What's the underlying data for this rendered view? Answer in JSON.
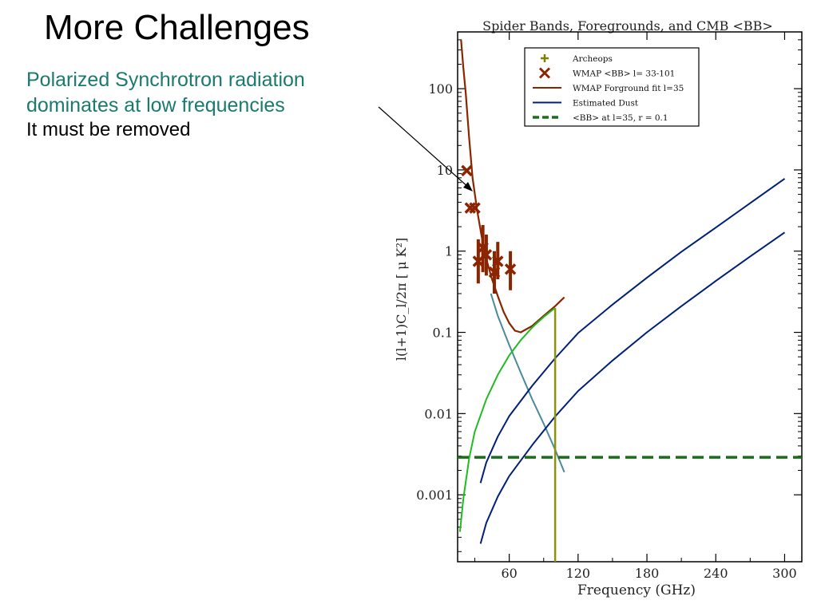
{
  "slide": {
    "title": "More Challenges",
    "bullet_line1": "Polarized Synchrotron radiation",
    "bullet_line2": "dominates at low frequencies",
    "note": "It must be removed"
  },
  "colors": {
    "wmap": "#8b2500",
    "foreground_fit": "#8b2500",
    "synchrotron": "#4a8a9a",
    "dust": "#001f7a",
    "cmb": "#1a6e1a",
    "green_curve": "#22bb22",
    "vertical": "#8f8f10",
    "archeops": "#808000"
  },
  "chart_data": {
    "type": "line",
    "title": "Spider Bands, Foregrounds, and CMB <BB>",
    "xlabel": "Frequency (GHz)",
    "ylabel": "l(l+1)C_l/2π [ μ K²]",
    "yscale": "log",
    "xlim": [
      15,
      315
    ],
    "ylim": [
      0.00015,
      500
    ],
    "xticks": [
      60,
      120,
      180,
      240,
      300
    ],
    "xtick_labels": [
      "60",
      "120",
      "180",
      "240",
      "300"
    ],
    "yticks": [
      100,
      10,
      1,
      0.1,
      0.01,
      0.001
    ],
    "ytick_labels": [
      "100",
      "10",
      "1",
      "0.1",
      "0.01",
      "0.001"
    ],
    "legend_position": "top-right",
    "legend": [
      {
        "label": "Archeops",
        "marker": "plus",
        "color": "#808000"
      },
      {
        "label": "WMAP <BB> l= 33-101",
        "marker": "x",
        "color": "#8b2500"
      },
      {
        "label": "WMAP Forground fit l=35",
        "style": "solid",
        "color": "#8b2500"
      },
      {
        "label": "Estimated Dust",
        "style": "solid",
        "color": "#001f7a"
      },
      {
        "label": "<BB> at l=35, r = 0.1",
        "style": "dashed",
        "color": "#1a6e1a"
      }
    ],
    "series": [
      {
        "name": "WMAP Forground fit l=35",
        "x": [
          18,
          20,
          22,
          25,
          28,
          32,
          36,
          40,
          45,
          50,
          55,
          60,
          65,
          70,
          80,
          90,
          100,
          108
        ],
        "y": [
          400,
          180,
          90,
          25,
          8,
          3.2,
          1.5,
          0.8,
          0.45,
          0.28,
          0.18,
          0.13,
          0.105,
          0.1,
          0.12,
          0.16,
          0.21,
          0.27
        ]
      },
      {
        "name": "",
        "x": [
          44,
          50,
          60,
          70,
          80,
          90,
          100,
          108
        ],
        "y": [
          0.3,
          0.16,
          0.07,
          0.032,
          0.015,
          0.0075,
          0.0036,
          0.0019
        ]
      },
      {
        "name": "",
        "x": [
          17,
          20,
          25,
          30,
          40,
          50,
          60,
          70,
          80,
          90,
          100
        ],
        "y": [
          0.00035,
          0.0009,
          0.0028,
          0.006,
          0.015,
          0.03,
          0.052,
          0.08,
          0.115,
          0.155,
          0.2
        ]
      },
      {
        "name": "",
        "x": [
          35,
          40,
          50,
          60,
          80,
          100,
          120,
          150,
          180,
          210,
          240,
          270,
          300
        ],
        "y": [
          0.0014,
          0.0025,
          0.0052,
          0.0093,
          0.022,
          0.048,
          0.098,
          0.22,
          0.47,
          0.98,
          1.95,
          3.9,
          7.8
        ]
      },
      {
        "name": "",
        "x": [
          35,
          40,
          50,
          60,
          80,
          100,
          120,
          150,
          180,
          210,
          240,
          270,
          300
        ],
        "y": [
          0.00025,
          0.00045,
          0.00095,
          0.0017,
          0.0041,
          0.0092,
          0.019,
          0.045,
          0.1,
          0.21,
          0.43,
          0.86,
          1.7
        ]
      },
      {
        "name": "<BB> at l=35, r = 0.1",
        "x": [
          15,
          315
        ],
        "y": [
          0.0029,
          0.0029
        ]
      }
    ],
    "wmap_points": [
      {
        "x": 23,
        "y": 9.8,
        "err": null
      },
      {
        "x": 26,
        "y": 3.4,
        "err": null
      },
      {
        "x": 30,
        "y": 3.4,
        "err": null
      },
      {
        "x": 33,
        "y": 0.75,
        "err": [
          0.4,
          1.4
        ]
      },
      {
        "x": 37,
        "y": 1.1,
        "err": [
          0.55,
          2.1
        ]
      },
      {
        "x": 40,
        "y": 0.9,
        "err": [
          0.5,
          1.6
        ]
      },
      {
        "x": 47,
        "y": 0.55,
        "err": [
          0.3,
          1.0
        ]
      },
      {
        "x": 50,
        "y": 0.75,
        "err": [
          0.45,
          1.3
        ]
      },
      {
        "x": 61,
        "y": 0.6,
        "err": [
          0.33,
          1.0
        ]
      }
    ],
    "vertical_line": {
      "x": 100,
      "y_top": 0.2
    }
  }
}
